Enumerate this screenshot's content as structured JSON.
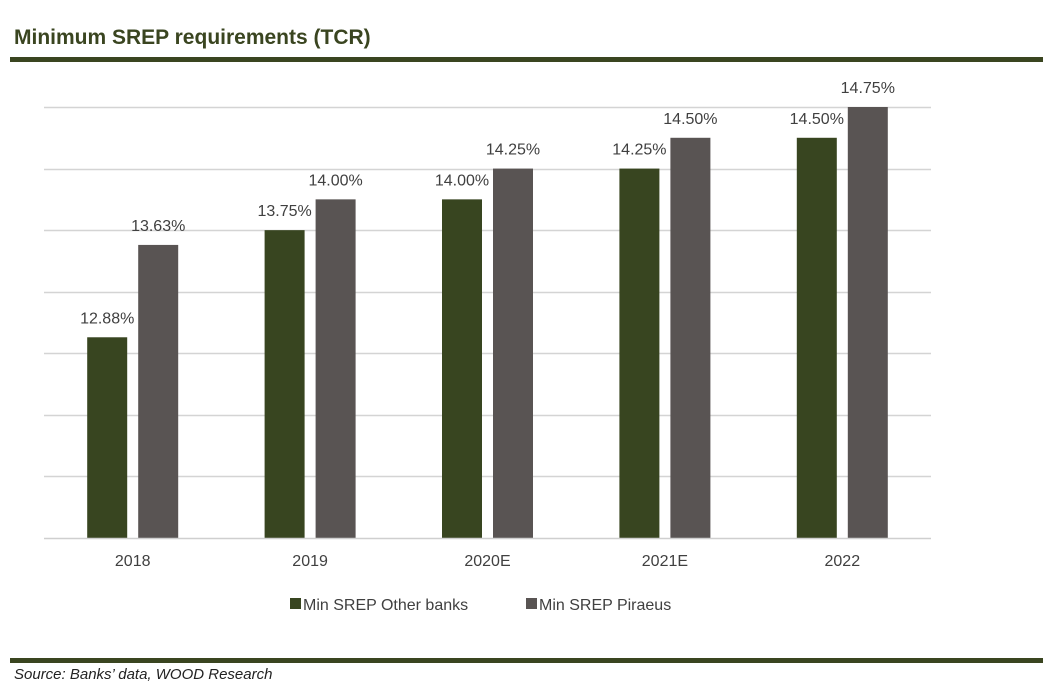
{
  "header": {
    "title": "Minimum SREP requirements (TCR)"
  },
  "footer": {
    "source": "Source: Banks’ data, WOOD Research"
  },
  "chart_data": {
    "type": "bar",
    "title": "Minimum SREP requirements (TCR)",
    "categories": [
      "2018",
      "2019",
      "2020E",
      "2021E",
      "2022"
    ],
    "series": [
      {
        "name": "Min SREP Other banks",
        "color": "#384520",
        "values": [
          12.88,
          13.75,
          14.0,
          14.25,
          14.5
        ],
        "labels": [
          "12.88%",
          "13.75%",
          "14.00%",
          "14.25%",
          "14.50%"
        ]
      },
      {
        "name": "Min SREP Piraeus",
        "color": "#595453",
        "values": [
          13.63,
          14.0,
          14.25,
          14.5,
          14.75
        ],
        "labels": [
          "13.63%",
          "14.00%",
          "14.25%",
          "14.50%",
          "14.75%"
        ]
      }
    ],
    "ylim": [
      11.25,
      14.75
    ],
    "gridline_step": 0.5,
    "grid": true,
    "y_axis_labels_shown": false,
    "legend_position": "bottom-center",
    "xlabel": "",
    "ylabel": ""
  }
}
